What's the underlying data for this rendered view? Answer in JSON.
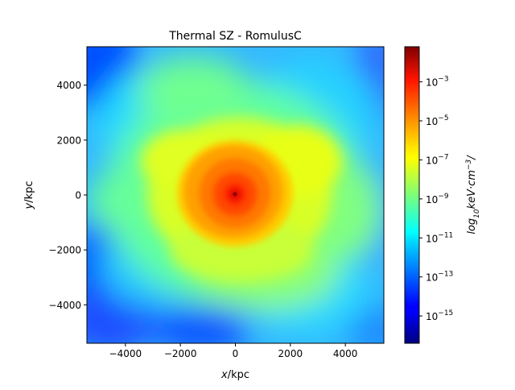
{
  "chart_data": {
    "type": "heatmap",
    "title": "Thermal SZ - RomulusC",
    "xlabel_var": "x",
    "xlabel_unit": "/kpc",
    "ylabel_var": "y",
    "ylabel_unit": "/kpc",
    "xlim": [
      -5400,
      5400
    ],
    "ylim": [
      -5400,
      5400
    ],
    "xticks": [
      -4000,
      -2000,
      0,
      2000,
      4000
    ],
    "yticks": [
      -4000,
      -2000,
      0,
      2000,
      4000
    ],
    "xtick_labels": [
      "−4000",
      "−2000",
      "0",
      "2000",
      "4000"
    ],
    "ytick_labels": [
      "−4000",
      "−2000",
      "0",
      "2000",
      "4000"
    ],
    "colormap": "jet",
    "colorbar": {
      "scale": "log",
      "range_exponent": [
        -16.4,
        -1.2
      ],
      "tick_exponents": [
        -3,
        -5,
        -7,
        -9,
        -11,
        -13,
        -15
      ],
      "tick_labels": [
        "10",
        "10",
        "10",
        "10",
        "10",
        "10",
        "10"
      ],
      "tick_sups": [
        "−3",
        "−5",
        "−7",
        "−9",
        "−11",
        "−13",
        "−15"
      ],
      "label_parts": {
        "log": "log",
        "base": "10",
        "unit": "keV·cm",
        "exp": "−3",
        "tail": "/"
      }
    },
    "field": {
      "center": [
        0,
        0
      ],
      "peak_exponent": -2.2,
      "background_exponent": -11.5,
      "description_core_radius_kpc": 2200
    }
  }
}
